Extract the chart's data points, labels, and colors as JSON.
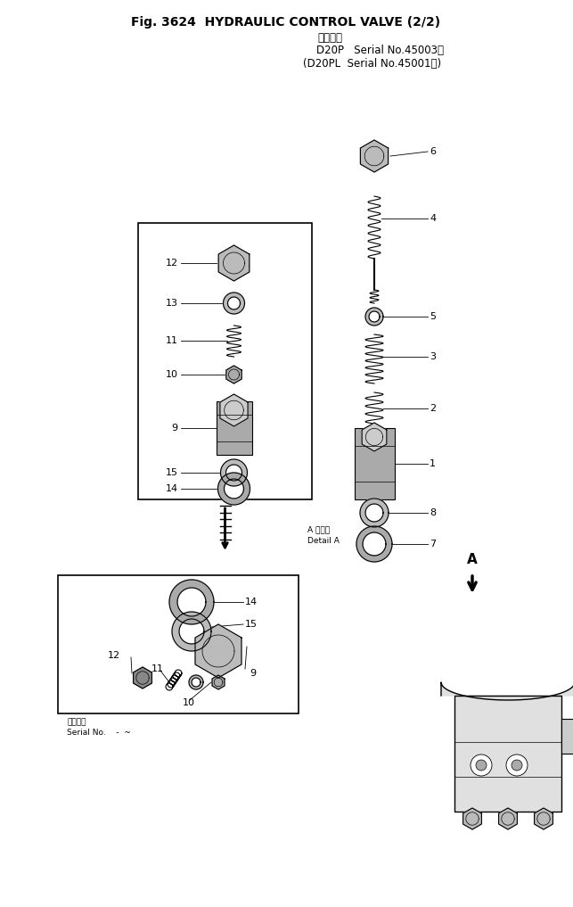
{
  "title_line1": "Fig. 3624  HYDRAULIC CONTROL VALVE (2/2)",
  "title_line2": "適用号機",
  "title_line3": "D20P   Serial No.45003～",
  "title_line4": "(D20PL  Serial No.45001～)",
  "detail_label": "A 部詳細\nDetail A",
  "serial_label": "適用号機\nSerial No.    -  ~",
  "bg_color": "#ffffff",
  "fg_color": "#000000",
  "page_width": 6.43,
  "page_height": 10.17
}
